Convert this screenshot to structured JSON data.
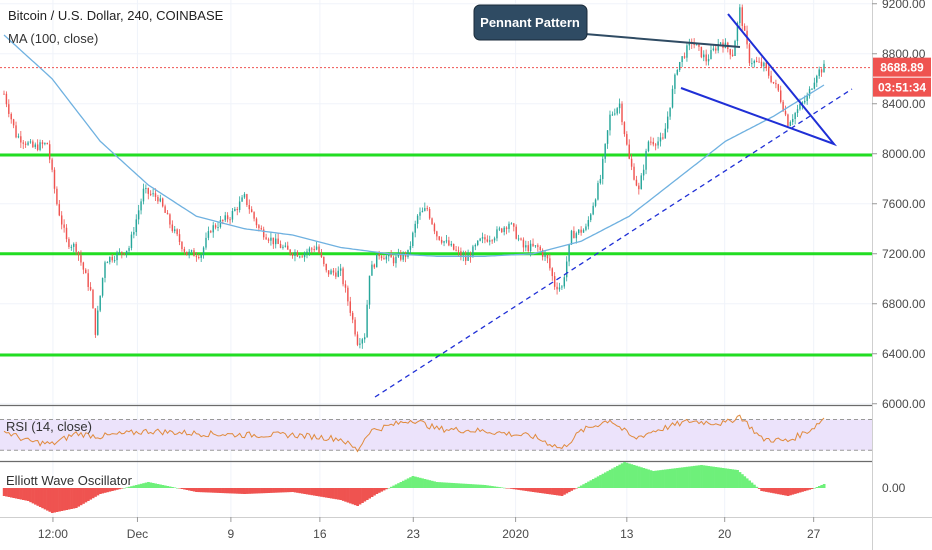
{
  "header": {
    "symbol_line": "Bitcoin / U.S. Dollar, 240, COINBASE",
    "ma_label": "MA (100, close)"
  },
  "price": {
    "last": "8688.89",
    "countdown": "03:51:34",
    "last_value": 8688.89
  },
  "annotation": {
    "label": "Pennant Pattern"
  },
  "indicators": {
    "rsi_label": "RSI (14, close)",
    "ewo_label": "Elliott Wave Oscillator",
    "ewo_zero": "0.00"
  },
  "colors": {
    "bull": "#26a69a",
    "bear": "#ef5350",
    "ma": "#6fb1e0",
    "support": "#22dd22",
    "pennant": "#1f2fd6",
    "rsi_line": "#e08a3c",
    "rsi_band": "#ece3fb",
    "callout_bg": "#2f4b63",
    "price_badge": "#ef5350"
  },
  "chart_data": {
    "type": "candlestick",
    "title": "Bitcoin / U.S. Dollar, 240, COINBASE",
    "y_ticks": [
      9200,
      8800,
      8400,
      8000,
      7600,
      7200,
      6800,
      6400,
      6000
    ],
    "y_tick_labels": [
      "9200.00",
      "8800.00",
      "8400.00",
      "8000.00",
      "7600.00",
      "7200.00",
      "6800.00",
      "6400.00",
      "6000.00"
    ],
    "ylim": [
      5990,
      9230
    ],
    "x_tick_labels": [
      "12:00",
      "Dec",
      "9",
      "16",
      "23",
      "2020",
      "13",
      "20",
      "27"
    ],
    "support_levels": [
      7990,
      7200,
      6390
    ],
    "price_anchors": [
      [
        0,
        8480
      ],
      [
        5,
        8150
      ],
      [
        12,
        8050
      ],
      [
        18,
        8080
      ],
      [
        22,
        7600
      ],
      [
        26,
        7300
      ],
      [
        30,
        7250
      ],
      [
        36,
        6900
      ],
      [
        38,
        6580
      ],
      [
        42,
        7150
      ],
      [
        48,
        7200
      ],
      [
        52,
        7250
      ],
      [
        58,
        7700
      ],
      [
        64,
        7650
      ],
      [
        70,
        7400
      ],
      [
        76,
        7200
      ],
      [
        82,
        7200
      ],
      [
        86,
        7400
      ],
      [
        94,
        7500
      ],
      [
        100,
        7650
      ],
      [
        106,
        7400
      ],
      [
        112,
        7300
      ],
      [
        118,
        7220
      ],
      [
        124,
        7200
      ],
      [
        130,
        7260
      ],
      [
        134,
        7050
      ],
      [
        140,
        7050
      ],
      [
        144,
        6750
      ],
      [
        147,
        6500
      ],
      [
        150,
        6550
      ],
      [
        152,
        7050
      ],
      [
        156,
        7200
      ],
      [
        162,
        7150
      ],
      [
        168,
        7200
      ],
      [
        172,
        7500
      ],
      [
        176,
        7560
      ],
      [
        180,
        7350
      ],
      [
        186,
        7250
      ],
      [
        192,
        7150
      ],
      [
        198,
        7300
      ],
      [
        204,
        7350
      ],
      [
        210,
        7450
      ],
      [
        216,
        7250
      ],
      [
        222,
        7250
      ],
      [
        226,
        7150
      ],
      [
        229,
        6950
      ],
      [
        232,
        6930
      ],
      [
        236,
        7350
      ],
      [
        242,
        7400
      ],
      [
        248,
        7800
      ],
      [
        252,
        8300
      ],
      [
        256,
        8400
      ],
      [
        260,
        7950
      ],
      [
        264,
        7700
      ],
      [
        268,
        8100
      ],
      [
        274,
        8100
      ],
      [
        280,
        8700
      ],
      [
        286,
        8900
      ],
      [
        292,
        8750
      ],
      [
        298,
        8900
      ],
      [
        303,
        8800
      ],
      [
        306,
        9150
      ],
      [
        310,
        8750
      ],
      [
        316,
        8700
      ],
      [
        322,
        8500
      ],
      [
        326,
        8250
      ],
      [
        330,
        8350
      ],
      [
        334,
        8450
      ],
      [
        338,
        8650
      ],
      [
        341,
        8688.89
      ]
    ],
    "candle_count": 342,
    "x_tick_index": [
      11,
      30,
      51,
      71,
      92,
      115,
      140,
      162,
      182
    ],
    "ma_anchors": [
      [
        0,
        8950
      ],
      [
        20,
        8600
      ],
      [
        40,
        8100
      ],
      [
        60,
        7750
      ],
      [
        80,
        7500
      ],
      [
        100,
        7400
      ],
      [
        120,
        7350
      ],
      [
        140,
        7250
      ],
      [
        160,
        7200
      ],
      [
        180,
        7180
      ],
      [
        200,
        7180
      ],
      [
        220,
        7200
      ],
      [
        240,
        7300
      ],
      [
        260,
        7500
      ],
      [
        280,
        7800
      ],
      [
        300,
        8100
      ],
      [
        320,
        8300
      ],
      [
        341,
        8550
      ]
    ],
    "rsi_bands": [
      70,
      30
    ],
    "rsi_anchors": [
      [
        0,
        55
      ],
      [
        10,
        42
      ],
      [
        20,
        38
      ],
      [
        30,
        52
      ],
      [
        40,
        48
      ],
      [
        60,
        55
      ],
      [
        80,
        52
      ],
      [
        100,
        50
      ],
      [
        120,
        50
      ],
      [
        140,
        45
      ],
      [
        147,
        30
      ],
      [
        152,
        55
      ],
      [
        170,
        70
      ],
      [
        180,
        58
      ],
      [
        200,
        55
      ],
      [
        220,
        48
      ],
      [
        232,
        32
      ],
      [
        240,
        55
      ],
      [
        252,
        70
      ],
      [
        262,
        45
      ],
      [
        270,
        55
      ],
      [
        285,
        68
      ],
      [
        300,
        65
      ],
      [
        306,
        75
      ],
      [
        315,
        45
      ],
      [
        326,
        42
      ],
      [
        336,
        58
      ],
      [
        341,
        72
      ]
    ],
    "ewo_anchors": [
      [
        0,
        -80
      ],
      [
        10,
        -130
      ],
      [
        20,
        -250
      ],
      [
        30,
        -200
      ],
      [
        40,
        -60
      ],
      [
        60,
        60
      ],
      [
        80,
        -40
      ],
      [
        100,
        -60
      ],
      [
        120,
        -40
      ],
      [
        140,
        -120
      ],
      [
        147,
        -180
      ],
      [
        155,
        -60
      ],
      [
        170,
        120
      ],
      [
        180,
        60
      ],
      [
        200,
        30
      ],
      [
        220,
        -40
      ],
      [
        232,
        -80
      ],
      [
        245,
        90
      ],
      [
        258,
        260
      ],
      [
        270,
        170
      ],
      [
        290,
        230
      ],
      [
        305,
        180
      ],
      [
        315,
        -30
      ],
      [
        326,
        -80
      ],
      [
        336,
        -10
      ],
      [
        341,
        40
      ]
    ],
    "pennant_label": "Pennant Pattern"
  }
}
